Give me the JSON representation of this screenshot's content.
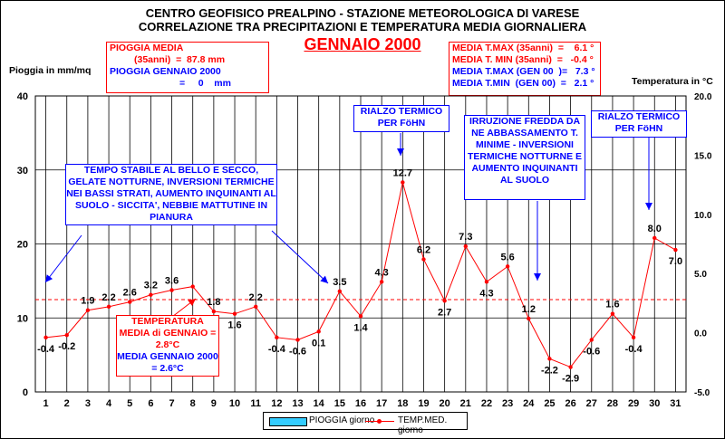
{
  "titles": {
    "line1": "CENTRO GEOFISICO PREALPINO - STAZIONE METEOROLOGICA DI VARESE",
    "line2": "CORRELAZIONE TRA PRECIPITAZIONI  E TEMPERATURA MEDIA GIORNALIERA",
    "month": "GENNAIO 2000"
  },
  "rain_box": {
    "line1": "PIOGGIA MEDIA",
    "line2": "(35anni)  =  87.8 mm",
    "line3": "PIOGGIA GENNAIO 2000",
    "line4": "=     0    mm"
  },
  "stats_box": {
    "line1": "MEDIA T.MAX (35anni)  =    6.1 °",
    "line2": "MEDIA T. MIN (35anni)  =   -0.4 °",
    "line3": "MEDIA T.MAX (GEN 00  )=   7.3 °",
    "line4": "MEDIA T.MIN  (GEN 00)  =   2.1 °"
  },
  "callouts": {
    "stable": "TEMPO STABILE AL BELLO E SECCO, GELATE NOTTURNE, INVERSIONI TERMICHE NEI BASSI STRATI, AUMENTO INQUINANTI AL SUOLO - SICCITA', NEBBIE MATTUTINE IN PIANURA",
    "foehn1": "RIALZO TERMICO PER FöHN",
    "cold": "IRRUZIONE FREDDA DA NE ABBASSAMENTO T. MINIME - INVERSIONI TERMICHE NOTTURNE E AUMENTO INQUINANTI AL SUOLO",
    "foehn2": "RIALZO TERMICO PER FöHN",
    "tmean": "TEMPERATURA MEDIA di GENNAIO = 2.8°C",
    "tmean2000": "MEDIA GENNAIO 2000 = 2.6°C"
  },
  "legend": {
    "rain": "PIOGGIA giorno",
    "temp": "TEMP.MED. giorno"
  },
  "chart_data": {
    "type": "line",
    "xlabel": "",
    "ylabel": "Pioggia in mm/mq",
    "y2label": "Temperatura in °C",
    "x": [
      1,
      2,
      3,
      4,
      5,
      6,
      7,
      8,
      9,
      10,
      11,
      12,
      13,
      14,
      15,
      16,
      17,
      18,
      19,
      20,
      21,
      22,
      23,
      24,
      25,
      26,
      27,
      28,
      29,
      30,
      31
    ],
    "ylim": [
      0,
      40
    ],
    "y2lim": [
      -5.0,
      20.0
    ],
    "yticks": [
      "0",
      "10",
      "20",
      "30",
      "40"
    ],
    "y2ticks": [
      "-5.0",
      "0.0",
      "5.0",
      "10.0",
      "15.0",
      "20.0"
    ],
    "reference_line": 2.8,
    "series": [
      {
        "name": "PIOGGIA giorno",
        "axis": "left",
        "values": [
          0,
          0,
          0,
          0,
          0,
          0,
          0,
          0,
          0,
          0,
          0,
          0,
          0,
          0,
          0,
          0,
          0,
          0,
          0,
          0,
          0,
          0,
          0,
          0,
          0,
          0,
          0,
          0,
          0,
          0,
          0
        ]
      },
      {
        "name": "TEMP.MED. giorno",
        "axis": "right",
        "values": [
          -0.4,
          -0.2,
          1.9,
          2.2,
          2.6,
          3.2,
          3.6,
          3.9,
          1.8,
          1.6,
          2.2,
          -0.4,
          -0.6,
          0.1,
          3.5,
          1.4,
          4.3,
          12.7,
          6.2,
          2.7,
          7.3,
          4.3,
          5.6,
          1.2,
          -2.2,
          -2.9,
          -0.6,
          1.6,
          -0.4,
          8.0,
          7.0
        ],
        "labels": [
          "-0.4",
          "-0.2",
          "1.9",
          "2.2",
          "2.6",
          "3.2",
          "3.6",
          "",
          "1.8",
          "1.6",
          "2.2",
          "-0.4",
          "-0.6",
          "0.1",
          "3.5",
          "1.4",
          "4.3",
          "12.7",
          "6.2",
          "2.7",
          "7.3",
          "4.3",
          "5.6",
          "1.2",
          "-2.2",
          "-2.9",
          "-0.6",
          "1.6",
          "-0.4",
          "8.0",
          "7.0"
        ]
      }
    ],
    "grid": true,
    "legend_position": "bottom"
  },
  "colors": {
    "temp": "#ff0000",
    "rain": "#33ccff",
    "callout": "#0000ff",
    "ref": "#ff0000"
  }
}
